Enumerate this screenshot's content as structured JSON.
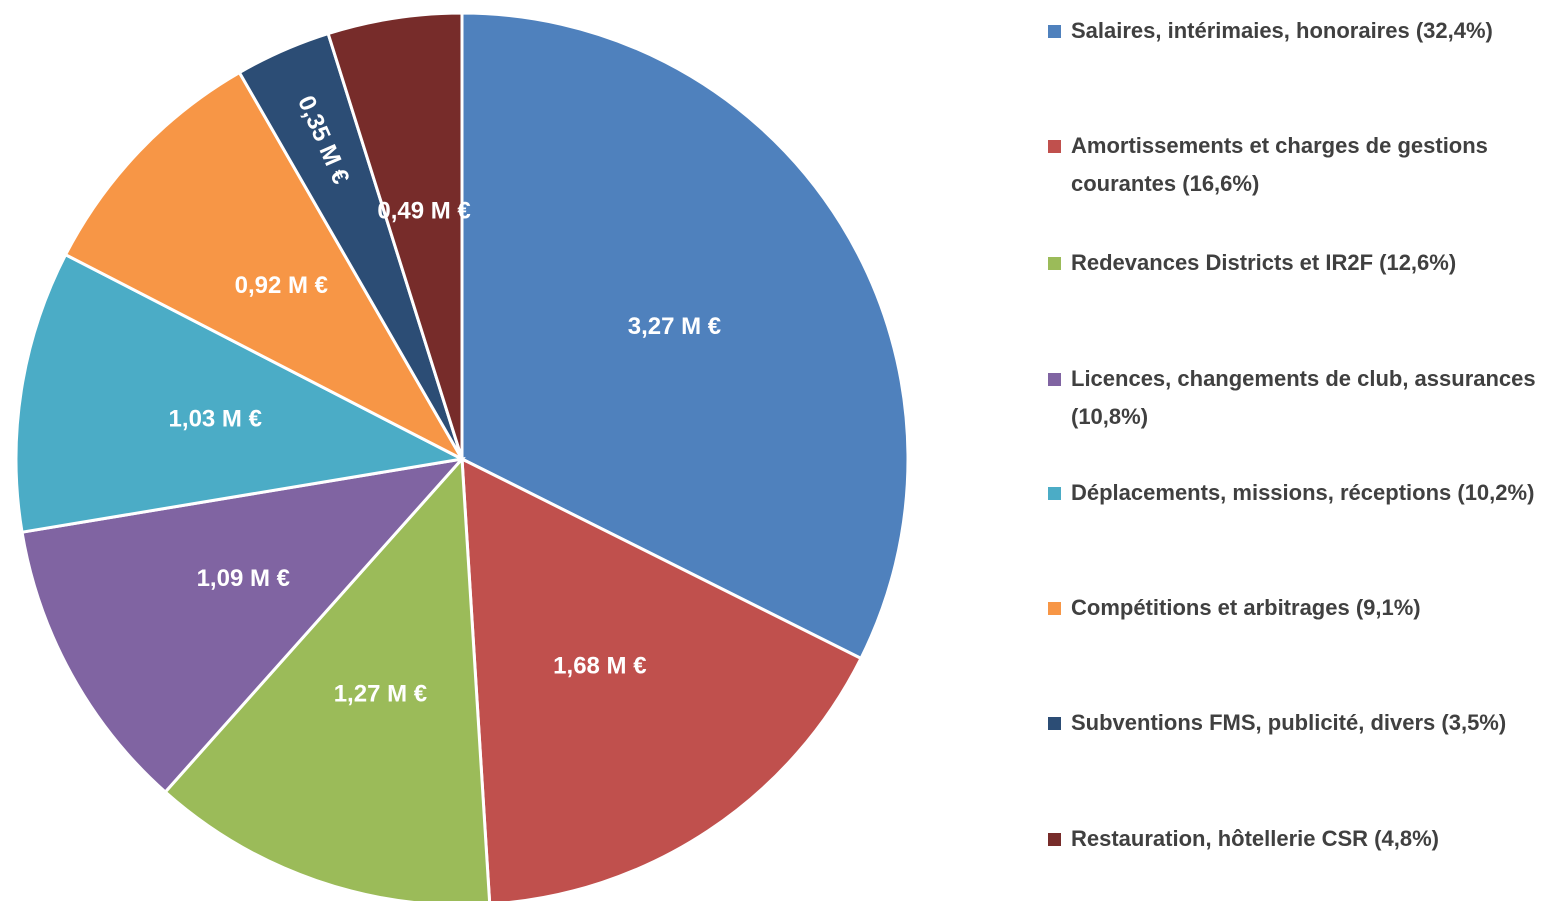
{
  "chart_data": {
    "type": "pie",
    "categories": [
      "Salaires, intérimaies, honoraires (32,4%)",
      "Amortissements et charges de gestions courantes (16,6%)",
      "Redevances Districts et IR2F (12,6%)",
      "Licences, changements de club, assurances (10,8%)",
      "Déplacements, missions, réceptions (10,2%)",
      "Compétitions et arbitrages (9,1%)",
      "Subventions FMS, publicité, divers (3,5%)",
      "Restauration, hôtellerie CSR (4,8%)"
    ],
    "values": [
      3.27,
      1.68,
      1.27,
      1.09,
      1.03,
      0.92,
      0.35,
      0.49
    ],
    "value_labels": [
      "3,27 M €",
      "1,68 M €",
      "1,27 M €",
      "1,09 M €",
      "1,03 M €",
      "0,92 M €",
      "0,35 M €",
      "0,49 M €"
    ],
    "colors": [
      "#4f81bd",
      "#c0504d",
      "#9bbb59",
      "#8064a2",
      "#4bacc6",
      "#f79646",
      "#2c4d75",
      "#772c2a"
    ],
    "legend": "right"
  }
}
